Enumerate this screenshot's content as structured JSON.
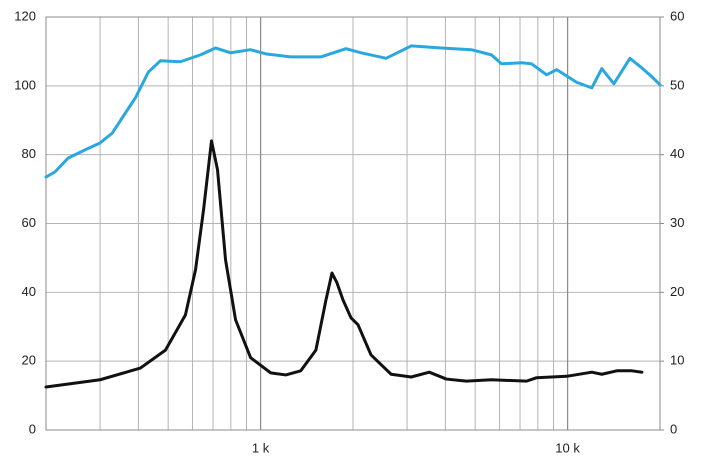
{
  "chart_data": {
    "type": "line",
    "xscale": "log",
    "grid": true,
    "xlim": [
      200,
      20000
    ],
    "xticks": [
      {
        "value": 1000,
        "label": "1 k"
      },
      {
        "value": 10000,
        "label": "10 k"
      }
    ],
    "ylim": [
      0,
      120
    ],
    "yticks": [
      0,
      20,
      40,
      60,
      80,
      100,
      120
    ],
    "y2lim": [
      0,
      60
    ],
    "y2ticks": [
      0,
      10,
      20,
      30,
      40,
      50,
      60
    ],
    "series": [
      {
        "color": "#29a8e0",
        "x": [
          200,
          214,
          236,
          268,
          300,
          329,
          362,
          391,
          431,
          472,
          548,
          637,
          713,
          799,
          928,
          1039,
          1254,
          1572,
          1897,
          2125,
          2564,
          3094,
          3878,
          4860,
          5650,
          6090,
          7080,
          7632,
          8546,
          9214,
          10712,
          11990,
          12930,
          14148,
          15960,
          17460,
          18840,
          20000
        ],
        "values": [
          73.5,
          75,
          79,
          81.4,
          83.4,
          86.3,
          92,
          96.5,
          104,
          107.3,
          107,
          109,
          111,
          109.6,
          110.5,
          109.3,
          108.4,
          108.4,
          110.8,
          109.6,
          108,
          111.6,
          111,
          110.5,
          109,
          106.4,
          106.7,
          106.4,
          103.2,
          104.7,
          101,
          99.4,
          105,
          100.6,
          108,
          105.2,
          102.6,
          100.3
        ]
      },
      {
        "color": "#111111",
        "axis": "y2",
        "x": [
          200,
          300,
          406,
          490,
          569,
          614,
          652,
          692,
          724,
          769,
          829,
          928,
          1079,
          1208,
          1352,
          1514,
          1633,
          1708,
          1773,
          1855,
          1970,
          2076,
          2290,
          2662,
          3094,
          3544,
          4028,
          4680,
          5650,
          7352,
          7926,
          9932,
          11990,
          12930,
          14470,
          16198,
          17460
        ],
        "values": [
          6.25,
          7.3,
          9,
          11.6,
          16.7,
          23.3,
          32,
          42,
          37.8,
          24.7,
          16,
          10.5,
          8.3,
          8,
          8.6,
          11.6,
          18.9,
          22.8,
          21.4,
          18.9,
          16.3,
          15.3,
          10.9,
          8.1,
          7.7,
          8.4,
          7.4,
          7.1,
          7.3,
          7.1,
          7.6,
          7.8,
          8.4,
          8.1,
          8.6,
          8.6,
          8.4
        ]
      }
    ]
  }
}
